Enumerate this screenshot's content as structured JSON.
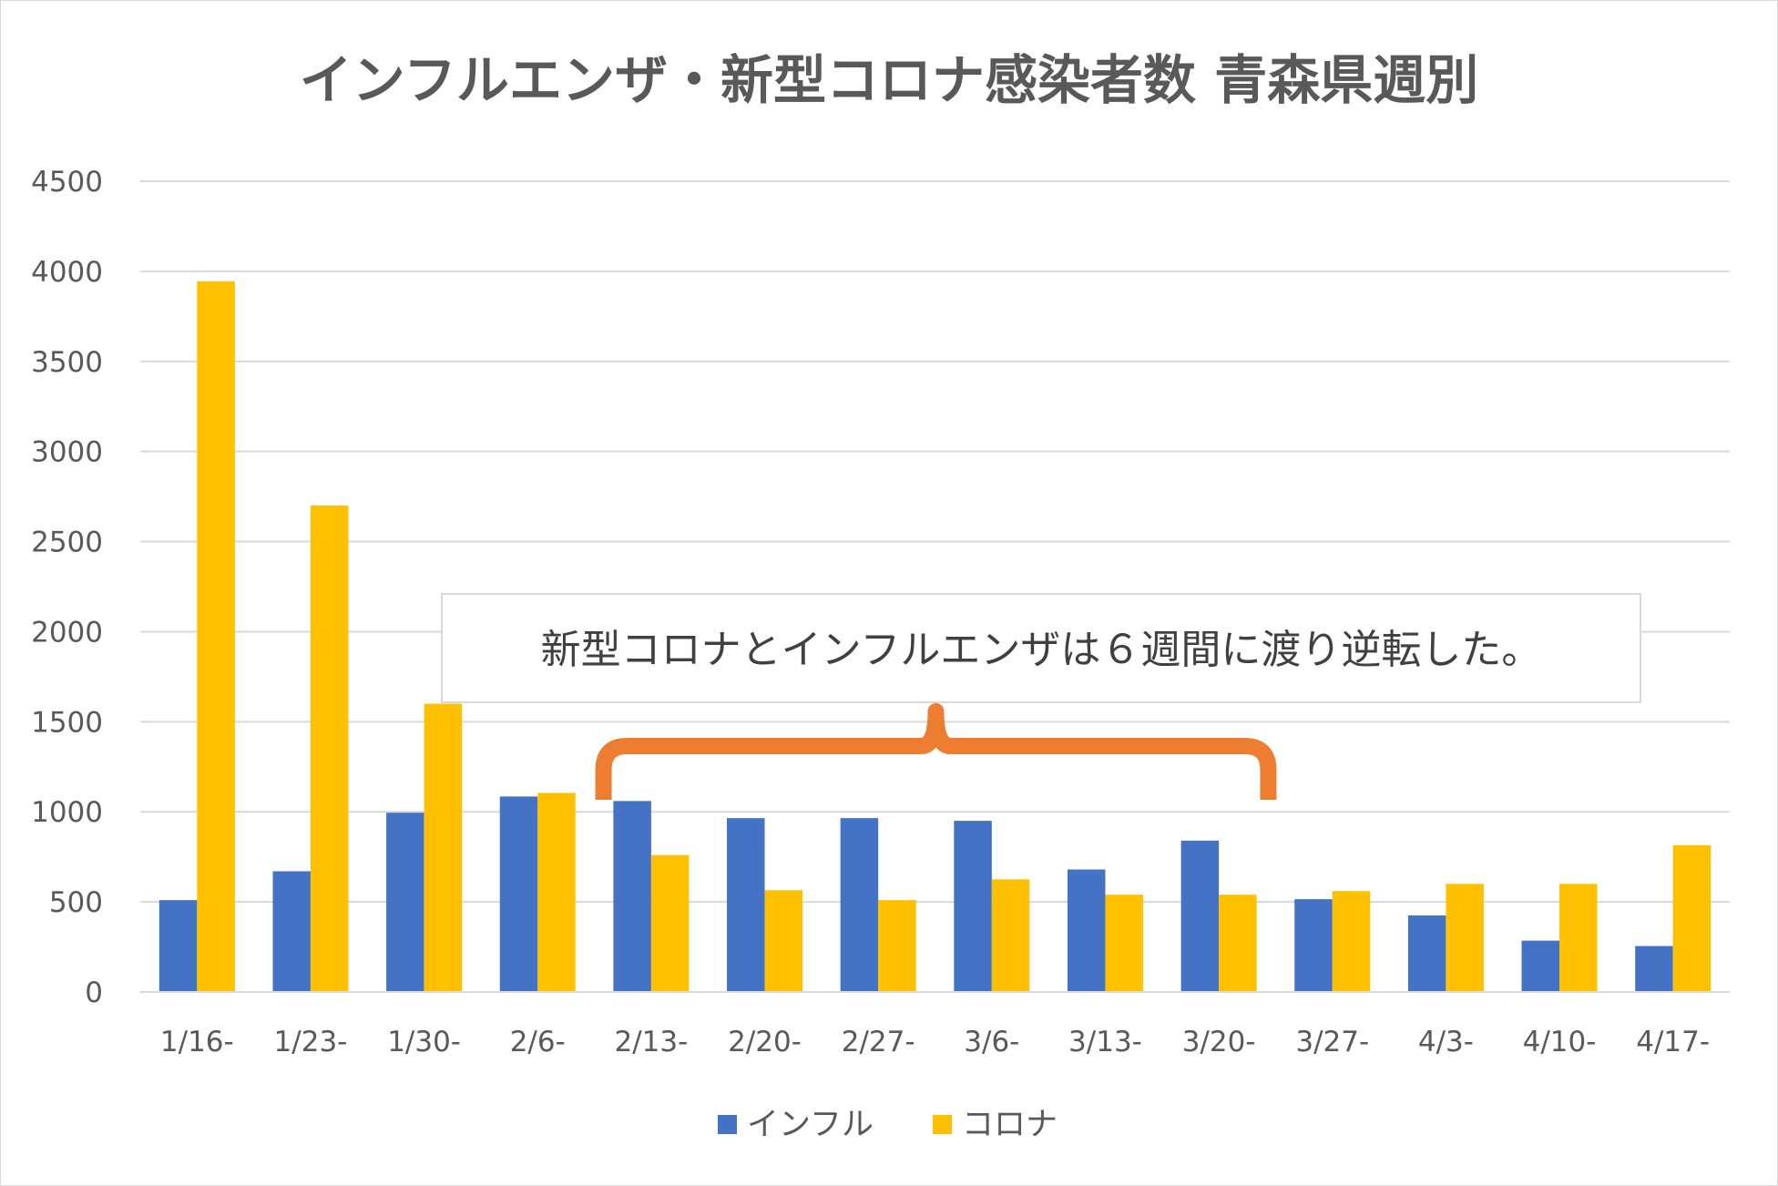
{
  "chart_data": {
    "type": "bar",
    "title": "インフルエンザ・新型コロナ感染者数 青森県週別",
    "xlabel": "",
    "ylabel": "",
    "ylim": [
      0,
      4500
    ],
    "yticks": [
      "0",
      "500",
      "1000",
      "1500",
      "2000",
      "2500",
      "3000",
      "3500",
      "4000",
      "4500"
    ],
    "grid": true,
    "legend_position": "bottom",
    "categories": [
      "1/16-",
      "1/23-",
      "1/30-",
      "2/6-",
      "2/13-",
      "2/20-",
      "2/27-",
      "3/6-",
      "3/13-",
      "3/20-",
      "3/27-",
      "4/3-",
      "4/10-",
      "4/17-"
    ],
    "series": [
      {
        "name": "インフル",
        "color": "#4472c4",
        "values": [
          510,
          670,
          995,
          1085,
          1060,
          965,
          965,
          950,
          680,
          840,
          515,
          425,
          285,
          255
        ]
      },
      {
        "name": "コロナ",
        "color": "#ffc000",
        "values": [
          3945,
          2700,
          1600,
          1105,
          760,
          565,
          510,
          625,
          540,
          540,
          560,
          600,
          600,
          815
        ]
      }
    ],
    "annotation": {
      "text": "新型コロナとインフルエンザは６週間に渡り逆転した。",
      "brace_color": "#ed7d31",
      "spans_categories": [
        "2/13-",
        "3/20-"
      ]
    }
  }
}
